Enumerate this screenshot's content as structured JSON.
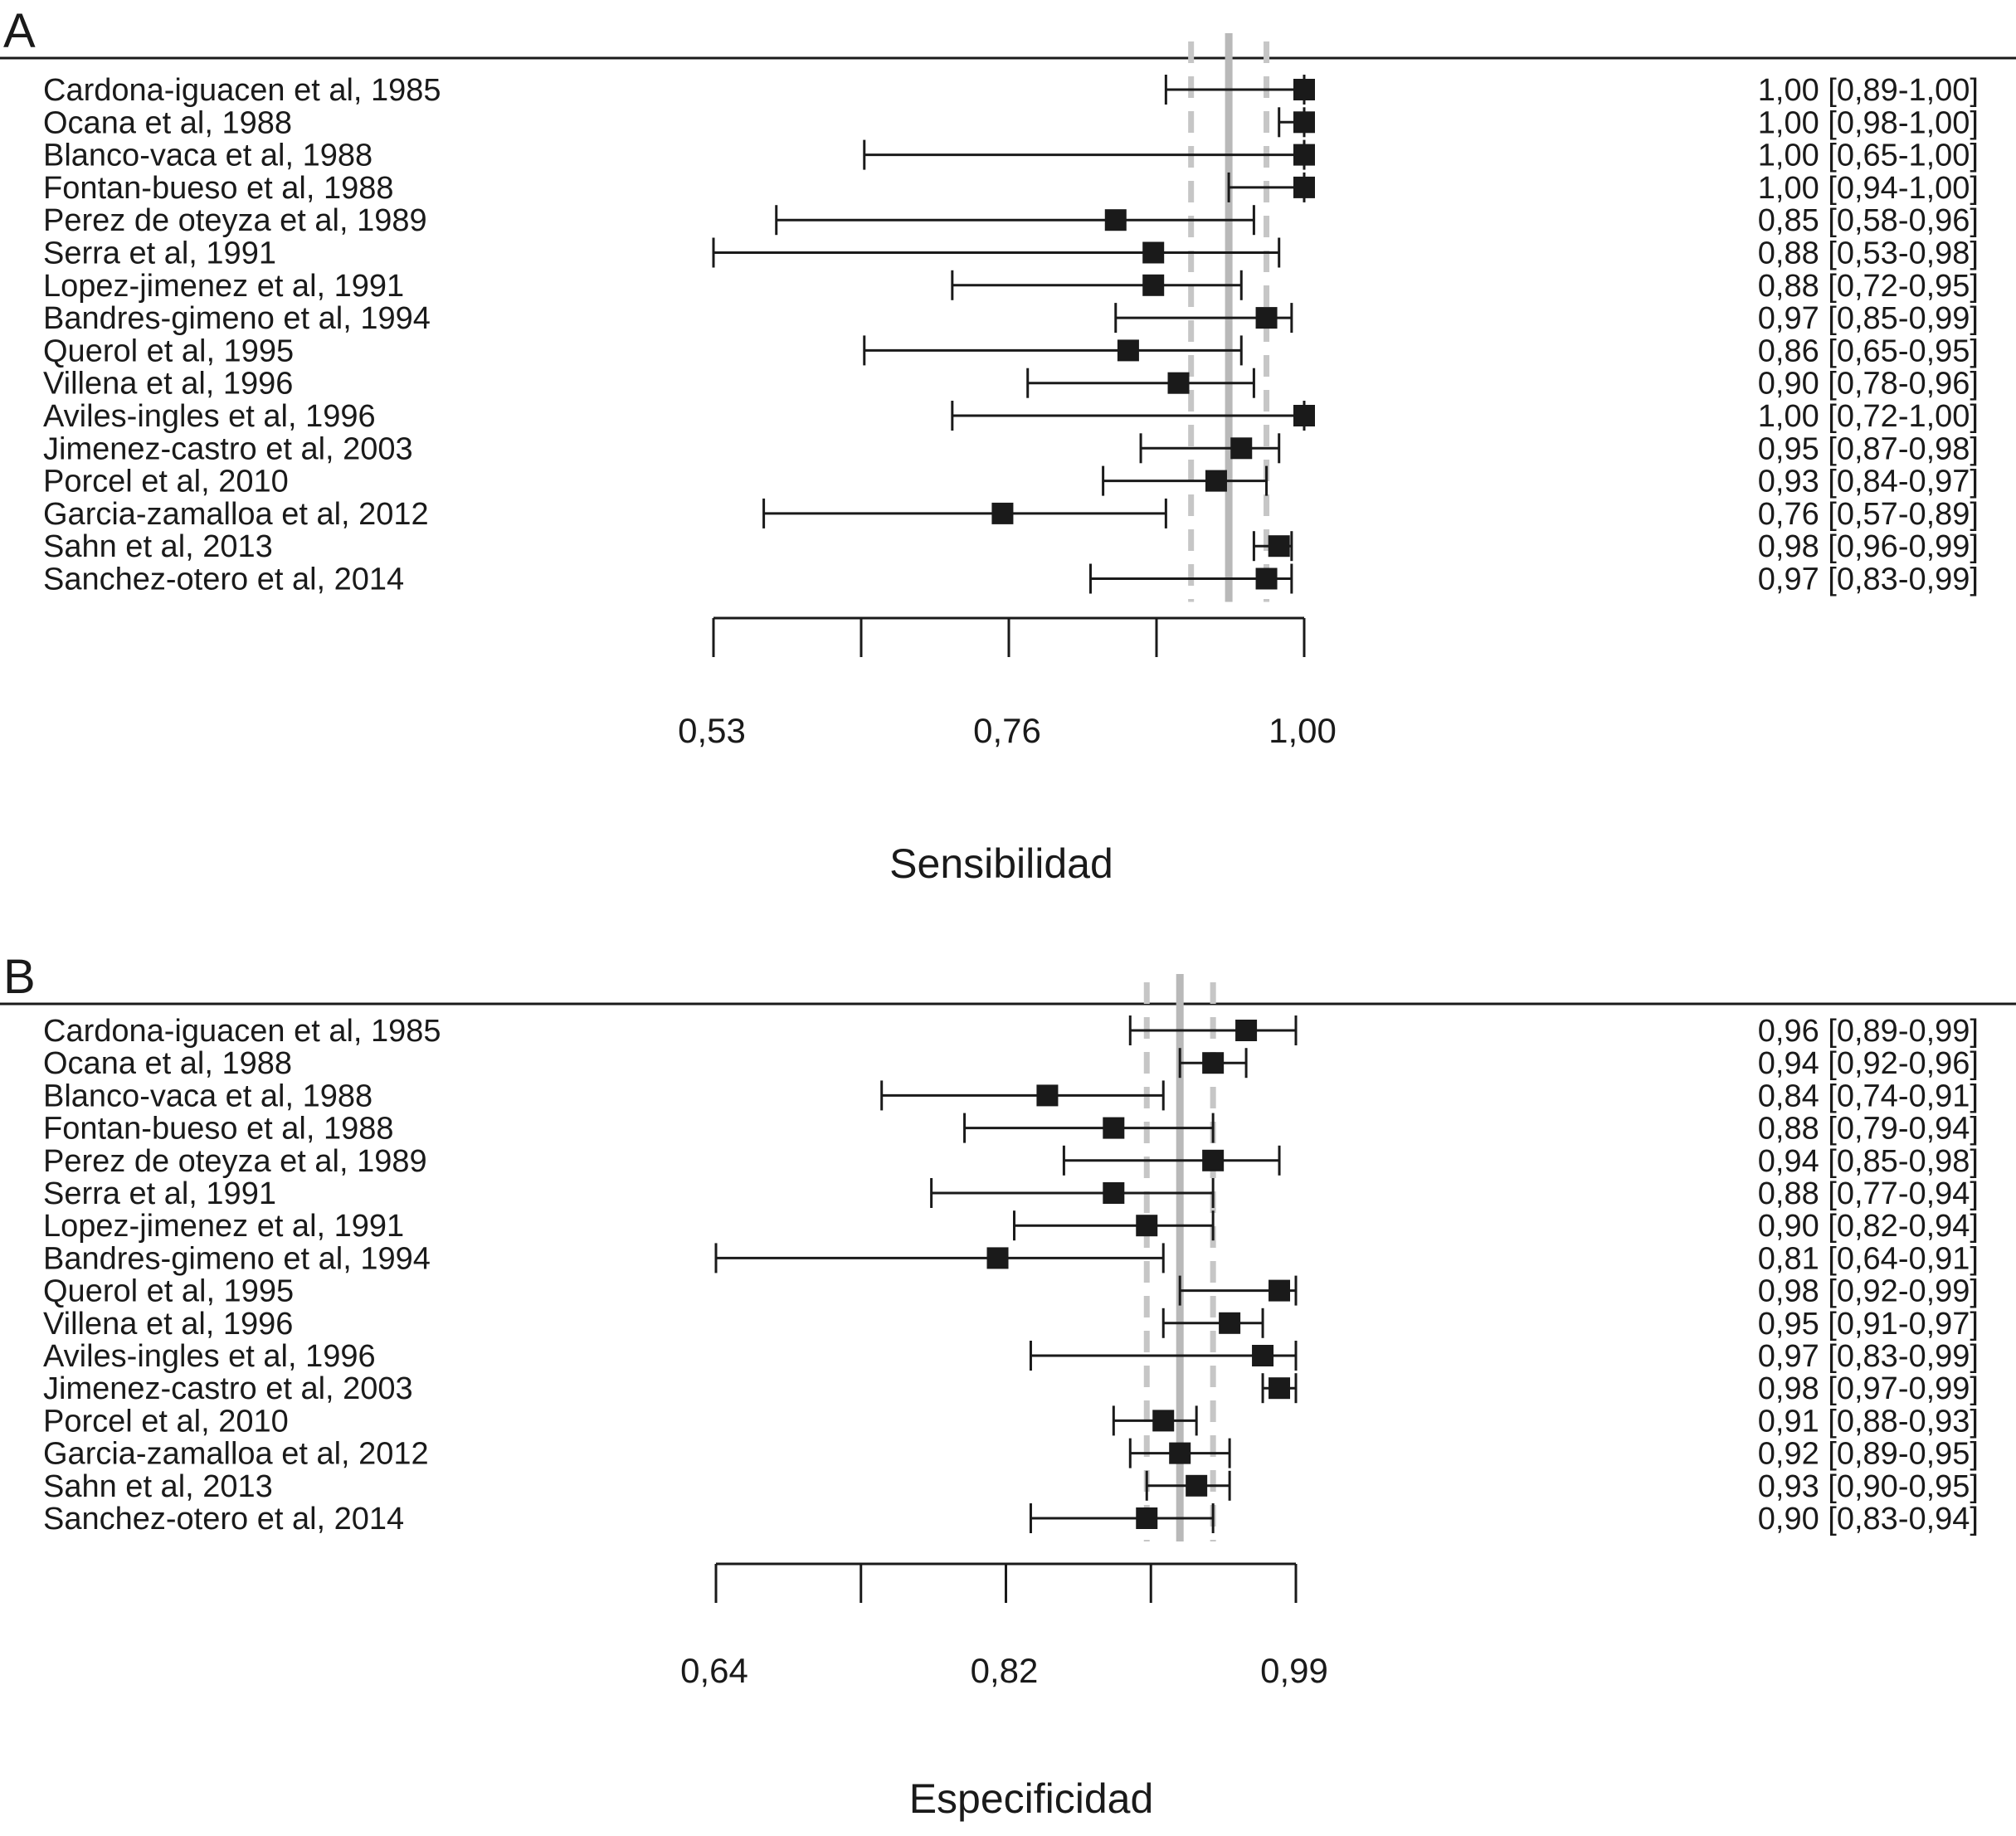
{
  "chart_data": [
    {
      "type": "forest",
      "panel": "A",
      "xlabel": "Sensibilidad",
      "xticks": [
        "0,53",
        "0,76",
        "1,00"
      ],
      "xlim": [
        0.53,
        1.0
      ],
      "pooled": 0.94,
      "pooled_ci": [
        0.91,
        0.97
      ],
      "studies": [
        {
          "label": "Cardona-iguacen et al, 1985",
          "value": 1.0,
          "low": 0.89,
          "high": 1.0,
          "ci_text": "1,00 [0,89-1,00]"
        },
        {
          "label": "Ocana et al, 1988",
          "value": 1.0,
          "low": 0.98,
          "high": 1.0,
          "ci_text": "1,00 [0,98-1,00]"
        },
        {
          "label": "Blanco-vaca et al, 1988",
          "value": 1.0,
          "low": 0.65,
          "high": 1.0,
          "ci_text": "1,00 [0,65-1,00]"
        },
        {
          "label": "Fontan-bueso et al, 1988",
          "value": 1.0,
          "low": 0.94,
          "high": 1.0,
          "ci_text": "1,00 [0,94-1,00]"
        },
        {
          "label": "Perez de oteyza et al, 1989",
          "value": 0.85,
          "low": 0.58,
          "high": 0.96,
          "ci_text": "0,85 [0,58-0,96]"
        },
        {
          "label": "Serra et al, 1991",
          "value": 0.88,
          "low": 0.53,
          "high": 0.98,
          "ci_text": "0,88 [0,53-0,98]"
        },
        {
          "label": "Lopez-jimenez et al, 1991",
          "value": 0.88,
          "low": 0.72,
          "high": 0.95,
          "ci_text": "0,88 [0,72-0,95]"
        },
        {
          "label": "Bandres-gimeno et al, 1994",
          "value": 0.97,
          "low": 0.85,
          "high": 0.99,
          "ci_text": "0,97 [0,85-0,99]"
        },
        {
          "label": "Querol et al, 1995",
          "value": 0.86,
          "low": 0.65,
          "high": 0.95,
          "ci_text": "0,86 [0,65-0,95]"
        },
        {
          "label": "Villena et al, 1996",
          "value": 0.9,
          "low": 0.78,
          "high": 0.96,
          "ci_text": "0,90 [0,78-0,96]"
        },
        {
          "label": "Aviles-ingles et al, 1996",
          "value": 1.0,
          "low": 0.72,
          "high": 1.0,
          "ci_text": "1,00 [0,72-1,00]"
        },
        {
          "label": "Jimenez-castro et al, 2003",
          "value": 0.95,
          "low": 0.87,
          "high": 0.98,
          "ci_text": "0,95 [0,87-0,98]"
        },
        {
          "label": "Porcel et al, 2010",
          "value": 0.93,
          "low": 0.84,
          "high": 0.97,
          "ci_text": "0,93 [0,84-0,97]"
        },
        {
          "label": "Garcia-zamalloa et al, 2012",
          "value": 0.76,
          "low": 0.57,
          "high": 0.89,
          "ci_text": "0,76 [0,57-0,89]"
        },
        {
          "label": "Sahn et al, 2013",
          "value": 0.98,
          "low": 0.96,
          "high": 0.99,
          "ci_text": "0,98 [0,96-0,99]"
        },
        {
          "label": "Sanchez-otero et al, 2014",
          "value": 0.97,
          "low": 0.83,
          "high": 0.99,
          "ci_text": "0,97 [0,83-0,99]"
        }
      ]
    },
    {
      "type": "forest",
      "panel": "B",
      "xlabel": "Especificidad",
      "xticks": [
        "0,64",
        "0,82",
        "0,99"
      ],
      "xlim": [
        0.64,
        0.99
      ],
      "pooled": 0.92,
      "pooled_ci": [
        0.9,
        0.94
      ],
      "studies": [
        {
          "label": "Cardona-iguacen et al, 1985",
          "value": 0.96,
          "low": 0.89,
          "high": 0.99,
          "ci_text": "0,96 [0,89-0,99]"
        },
        {
          "label": "Ocana et al, 1988",
          "value": 0.94,
          "low": 0.92,
          "high": 0.96,
          "ci_text": "0,94 [0,92-0,96]"
        },
        {
          "label": "Blanco-vaca et al, 1988",
          "value": 0.84,
          "low": 0.74,
          "high": 0.91,
          "ci_text": "0,84 [0,74-0,91]"
        },
        {
          "label": "Fontan-bueso et al, 1988",
          "value": 0.88,
          "low": 0.79,
          "high": 0.94,
          "ci_text": "0,88 [0,79-0,94]"
        },
        {
          "label": "Perez de oteyza et al, 1989",
          "value": 0.94,
          "low": 0.85,
          "high": 0.98,
          "ci_text": "0,94 [0,85-0,98]"
        },
        {
          "label": "Serra et al, 1991",
          "value": 0.88,
          "low": 0.77,
          "high": 0.94,
          "ci_text": "0,88 [0,77-0,94]"
        },
        {
          "label": "Lopez-jimenez et al, 1991",
          "value": 0.9,
          "low": 0.82,
          "high": 0.94,
          "ci_text": "0,90 [0,82-0,94]"
        },
        {
          "label": "Bandres-gimeno et al, 1994",
          "value": 0.81,
          "low": 0.64,
          "high": 0.91,
          "ci_text": "0,81 [0,64-0,91]"
        },
        {
          "label": "Querol et al, 1995",
          "value": 0.98,
          "low": 0.92,
          "high": 0.99,
          "ci_text": "0,98 [0,92-0,99]"
        },
        {
          "label": "Villena et al, 1996",
          "value": 0.95,
          "low": 0.91,
          "high": 0.97,
          "ci_text": "0,95 [0,91-0,97]"
        },
        {
          "label": "Aviles-ingles et al, 1996",
          "value": 0.97,
          "low": 0.83,
          "high": 0.99,
          "ci_text": "0,97 [0,83-0,99]"
        },
        {
          "label": "Jimenez-castro et al, 2003",
          "value": 0.98,
          "low": 0.97,
          "high": 0.99,
          "ci_text": "0,98 [0,97-0,99]"
        },
        {
          "label": "Porcel et al, 2010",
          "value": 0.91,
          "low": 0.88,
          "high": 0.93,
          "ci_text": "0,91 [0,88-0,93]"
        },
        {
          "label": "Garcia-zamalloa et al, 2012",
          "value": 0.92,
          "low": 0.89,
          "high": 0.95,
          "ci_text": "0,92 [0,89-0,95]"
        },
        {
          "label": "Sahn et al, 2013",
          "value": 0.93,
          "low": 0.9,
          "high": 0.95,
          "ci_text": "0,93 [0,90-0,95]"
        },
        {
          "label": "Sanchez-otero et al, 2014",
          "value": 0.9,
          "low": 0.83,
          "high": 0.94,
          "ci_text": "0,90 [0,83-0,94]"
        }
      ]
    }
  ],
  "colors": {
    "ink": "#1a1a1a",
    "pooled_line": "#b9b9b9",
    "ci_line": "#c6c6c6"
  }
}
